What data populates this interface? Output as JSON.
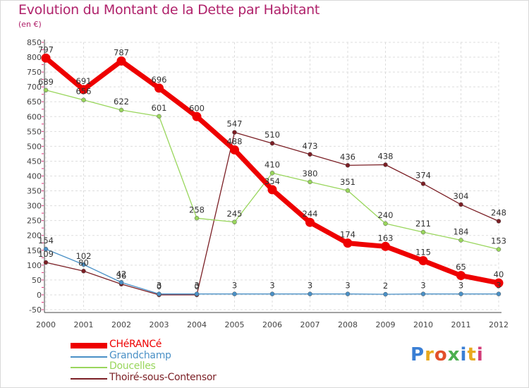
{
  "header": {
    "title": "Evolution du Montant de la Dette par Habitant",
    "subtitle": "(en €)"
  },
  "logo": {
    "text": "Proxiti"
  },
  "chart_data": {
    "type": "line",
    "title": "Evolution du Montant de la Dette par Habitant",
    "subtitle": "(en €)",
    "x": [
      2000,
      2001,
      2002,
      2003,
      2004,
      2005,
      2006,
      2007,
      2008,
      2009,
      2010,
      2011,
      2012
    ],
    "ylim": [
      -50,
      850
    ],
    "yticks": [
      -50,
      0,
      50,
      100,
      150,
      200,
      250,
      300,
      350,
      400,
      450,
      500,
      550,
      600,
      650,
      700,
      750,
      800,
      850
    ],
    "grid": true,
    "legend_position": "bottom-left",
    "series": [
      {
        "name": "Thoiré-sous-Contensor",
        "color": "#7b1f25",
        "values": [
          109,
          80,
          36,
          0,
          0,
          547,
          510,
          473,
          436,
          438,
          374,
          304,
          248
        ]
      },
      {
        "name": "Doucelles",
        "color": "#99d65c",
        "values": [
          689,
          656,
          622,
          601,
          258,
          245,
          410,
          380,
          351,
          240,
          211,
          184,
          153
        ]
      },
      {
        "name": "Grandchamp",
        "color": "#4a90c6",
        "values": [
          154,
          102,
          42,
          3,
          3,
          3,
          3,
          3,
          3,
          2,
          3,
          3,
          3
        ]
      },
      {
        "name": "CHéRANCé",
        "color": "#ee0000",
        "values": [
          797,
          691,
          787,
          696,
          600,
          488,
          354,
          244,
          174,
          163,
          115,
          65,
          40
        ]
      }
    ],
    "legend": [
      "CHéRANCé",
      "Grandchamp",
      "Doucelles",
      "Thoiré-sous-Contensor"
    ]
  }
}
